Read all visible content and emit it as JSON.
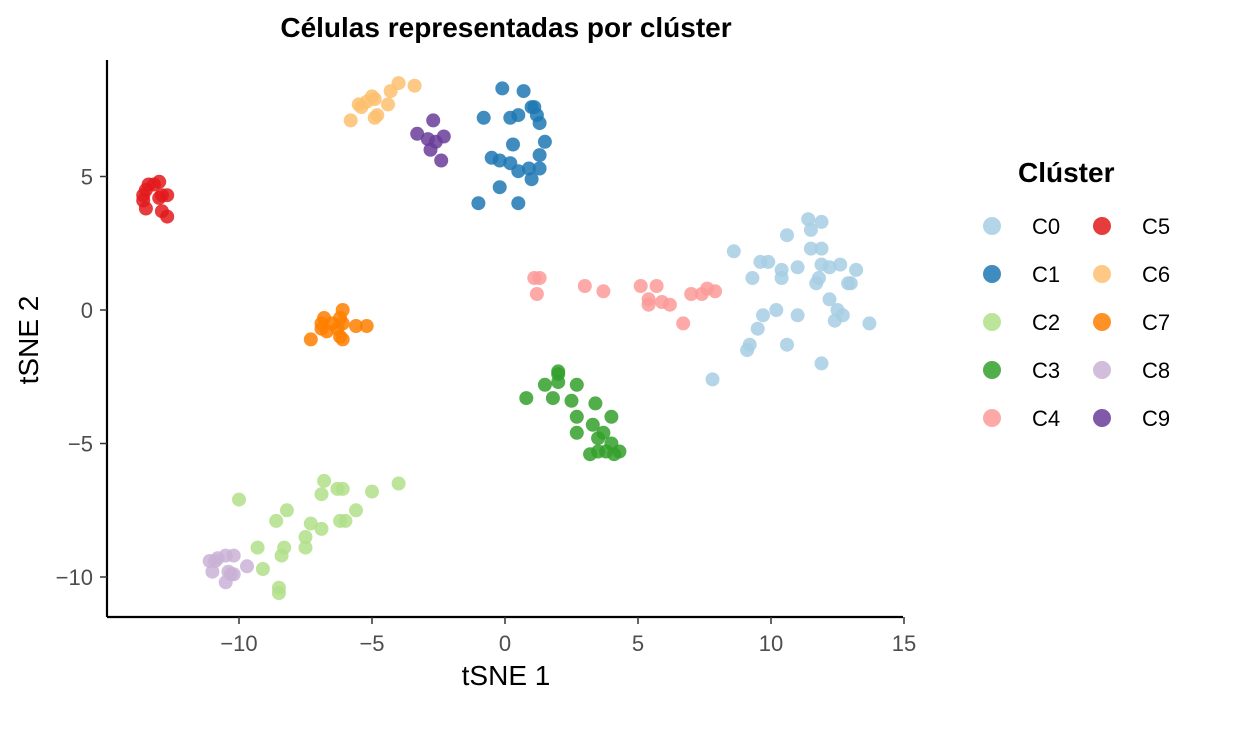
{
  "chart_data": {
    "type": "scatter",
    "title": "Células representadas por clúster",
    "xlabel": "tSNE 1",
    "ylabel": "tSNE 2",
    "xlim": [
      -15,
      15
    ],
    "ylim": [
      -11.5,
      9.5
    ],
    "xticks": [
      -10,
      -5,
      0,
      5,
      10,
      15
    ],
    "xtick_labels": [
      "−10",
      "−5",
      "0",
      "5",
      "10",
      "15"
    ],
    "yticks": [
      -10,
      -5,
      0,
      5
    ],
    "ytick_labels": [
      "−10",
      "−5",
      "0",
      "5"
    ],
    "grid": false,
    "legend": {
      "title": "Clúster",
      "position": "right",
      "columns": 2
    },
    "series": [
      {
        "name": "C0",
        "color": "#a6cee3",
        "points": [
          [
            11.4,
            3.4
          ],
          [
            11.9,
            3.3
          ],
          [
            11.5,
            3.0
          ],
          [
            10.6,
            2.8
          ],
          [
            8.6,
            2.2
          ],
          [
            11.5,
            2.3
          ],
          [
            11.9,
            2.3
          ],
          [
            9.6,
            1.8
          ],
          [
            9.9,
            1.8
          ],
          [
            10.4,
            1.5
          ],
          [
            11.0,
            1.6
          ],
          [
            11.9,
            1.7
          ],
          [
            12.6,
            1.7
          ],
          [
            12.2,
            1.6
          ],
          [
            13.2,
            1.5
          ],
          [
            9.3,
            1.2
          ],
          [
            10.4,
            1.2
          ],
          [
            11.8,
            1.2
          ],
          [
            11.7,
            1.0
          ],
          [
            12.9,
            1.0
          ],
          [
            13.0,
            1.0
          ],
          [
            12.2,
            0.4
          ],
          [
            10.2,
            0.0
          ],
          [
            12.5,
            0.0
          ],
          [
            9.7,
            -0.2
          ],
          [
            11.0,
            -0.2
          ],
          [
            12.7,
            -0.2
          ],
          [
            12.4,
            -0.4
          ],
          [
            13.7,
            -0.5
          ],
          [
            9.5,
            -0.7
          ],
          [
            9.2,
            -1.3
          ],
          [
            9.1,
            -1.5
          ],
          [
            10.6,
            -1.3
          ],
          [
            11.9,
            -2.0
          ],
          [
            7.8,
            -2.6
          ]
        ]
      },
      {
        "name": "C1",
        "color": "#1f78b4",
        "points": [
          [
            -0.1,
            8.3
          ],
          [
            0.7,
            8.2
          ],
          [
            1.1,
            7.6
          ],
          [
            1.0,
            7.6
          ],
          [
            -0.8,
            7.2
          ],
          [
            0.5,
            7.3
          ],
          [
            0.2,
            7.2
          ],
          [
            1.2,
            7.3
          ],
          [
            1.3,
            7.0
          ],
          [
            1.5,
            6.3
          ],
          [
            0.3,
            6.2
          ],
          [
            -0.5,
            5.7
          ],
          [
            -0.2,
            5.6
          ],
          [
            0.2,
            5.5
          ],
          [
            1.3,
            5.8
          ],
          [
            0.9,
            5.3
          ],
          [
            1.3,
            5.3
          ],
          [
            0.5,
            5.2
          ],
          [
            1.0,
            4.9
          ],
          [
            -0.2,
            4.6
          ],
          [
            -1.0,
            4.0
          ],
          [
            0.5,
            4.0
          ]
        ]
      },
      {
        "name": "C2",
        "color": "#b2df8a",
        "points": [
          [
            -6.8,
            -6.4
          ],
          [
            -4.0,
            -6.5
          ],
          [
            -6.3,
            -6.7
          ],
          [
            -6.1,
            -6.7
          ],
          [
            -5.0,
            -6.8
          ],
          [
            -6.9,
            -6.9
          ],
          [
            -10.0,
            -7.1
          ],
          [
            -5.6,
            -7.5
          ],
          [
            -8.2,
            -7.5
          ],
          [
            -8.6,
            -7.9
          ],
          [
            -7.3,
            -8.0
          ],
          [
            -6.2,
            -7.9
          ],
          [
            -6.0,
            -7.9
          ],
          [
            -6.9,
            -8.2
          ],
          [
            -7.5,
            -8.5
          ],
          [
            -8.3,
            -8.9
          ],
          [
            -9.3,
            -8.9
          ],
          [
            -7.5,
            -8.9
          ],
          [
            -8.4,
            -9.2
          ],
          [
            -9.1,
            -9.7
          ],
          [
            -8.5,
            -10.4
          ],
          [
            -8.5,
            -10.6
          ]
        ]
      },
      {
        "name": "C3",
        "color": "#33a02c",
        "points": [
          [
            2.0,
            -2.3
          ],
          [
            2.0,
            -2.4
          ],
          [
            1.5,
            -2.8
          ],
          [
            2.0,
            -2.7
          ],
          [
            2.7,
            -2.8
          ],
          [
            0.8,
            -3.3
          ],
          [
            1.8,
            -3.3
          ],
          [
            2.5,
            -3.4
          ],
          [
            3.4,
            -3.5
          ],
          [
            2.7,
            -4.0
          ],
          [
            4.0,
            -4.0
          ],
          [
            3.3,
            -4.3
          ],
          [
            2.7,
            -4.6
          ],
          [
            3.7,
            -4.6
          ],
          [
            3.5,
            -4.8
          ],
          [
            4.0,
            -5.0
          ],
          [
            3.8,
            -5.3
          ],
          [
            3.5,
            -5.3
          ],
          [
            4.3,
            -5.3
          ],
          [
            3.2,
            -5.4
          ],
          [
            4.1,
            -5.4
          ]
        ]
      },
      {
        "name": "C4",
        "color": "#fb9a99",
        "points": [
          [
            1.1,
            1.2
          ],
          [
            1.3,
            1.2
          ],
          [
            3.0,
            0.9
          ],
          [
            5.1,
            0.9
          ],
          [
            5.7,
            0.9
          ],
          [
            7.6,
            0.8
          ],
          [
            3.7,
            0.7
          ],
          [
            7.0,
            0.6
          ],
          [
            7.4,
            0.6
          ],
          [
            7.9,
            0.7
          ],
          [
            1.2,
            0.6
          ],
          [
            5.4,
            0.4
          ],
          [
            5.9,
            0.3
          ],
          [
            6.2,
            0.2
          ],
          [
            5.4,
            0.2
          ],
          [
            6.7,
            -0.5
          ]
        ]
      },
      {
        "name": "C5",
        "color": "#e31a1c",
        "points": [
          [
            -13.0,
            4.8
          ],
          [
            -13.2,
            4.7
          ],
          [
            -13.4,
            4.7
          ],
          [
            -13.5,
            4.5
          ],
          [
            -13.6,
            4.3
          ],
          [
            -12.9,
            4.3
          ],
          [
            -12.7,
            4.3
          ],
          [
            -13.0,
            4.2
          ],
          [
            -13.6,
            4.1
          ],
          [
            -13.5,
            3.8
          ],
          [
            -12.9,
            3.7
          ],
          [
            -12.7,
            3.5
          ]
        ]
      },
      {
        "name": "C6",
        "color": "#fdbf6f",
        "points": [
          [
            -4.0,
            8.5
          ],
          [
            -3.4,
            8.4
          ],
          [
            -4.3,
            8.2
          ],
          [
            -5.0,
            8.0
          ],
          [
            -4.9,
            7.9
          ],
          [
            -5.2,
            7.8
          ],
          [
            -5.5,
            7.7
          ],
          [
            -4.4,
            7.7
          ],
          [
            -5.4,
            7.6
          ],
          [
            -4.8,
            7.3
          ],
          [
            -4.9,
            7.2
          ],
          [
            -5.8,
            7.1
          ]
        ]
      },
      {
        "name": "C7",
        "color": "#ff7f00",
        "points": [
          [
            -6.1,
            0.0
          ],
          [
            -6.8,
            -0.3
          ],
          [
            -6.2,
            -0.3
          ],
          [
            -6.9,
            -0.5
          ],
          [
            -6.5,
            -0.5
          ],
          [
            -6.1,
            -0.5
          ],
          [
            -5.6,
            -0.6
          ],
          [
            -5.2,
            -0.6
          ],
          [
            -6.9,
            -0.7
          ],
          [
            -6.3,
            -0.7
          ],
          [
            -6.7,
            -0.8
          ],
          [
            -6.2,
            -1.0
          ],
          [
            -7.3,
            -1.1
          ],
          [
            -6.1,
            -1.1
          ]
        ]
      },
      {
        "name": "C8",
        "color": "#cab2d6",
        "points": [
          [
            -10.2,
            -9.2
          ],
          [
            -10.5,
            -9.2
          ],
          [
            -10.8,
            -9.3
          ],
          [
            -11.1,
            -9.4
          ],
          [
            -10.9,
            -9.4
          ],
          [
            -9.7,
            -9.6
          ],
          [
            -11.0,
            -9.8
          ],
          [
            -10.4,
            -9.8
          ],
          [
            -10.3,
            -9.9
          ],
          [
            -10.2,
            -9.9
          ],
          [
            -10.5,
            -10.2
          ]
        ]
      },
      {
        "name": "C9",
        "color": "#6a3d9a",
        "points": [
          [
            -2.7,
            7.1
          ],
          [
            -3.3,
            6.6
          ],
          [
            -2.3,
            6.5
          ],
          [
            -2.9,
            6.4
          ],
          [
            -2.6,
            6.3
          ],
          [
            -2.8,
            6.0
          ],
          [
            -2.4,
            5.6
          ]
        ]
      }
    ]
  }
}
